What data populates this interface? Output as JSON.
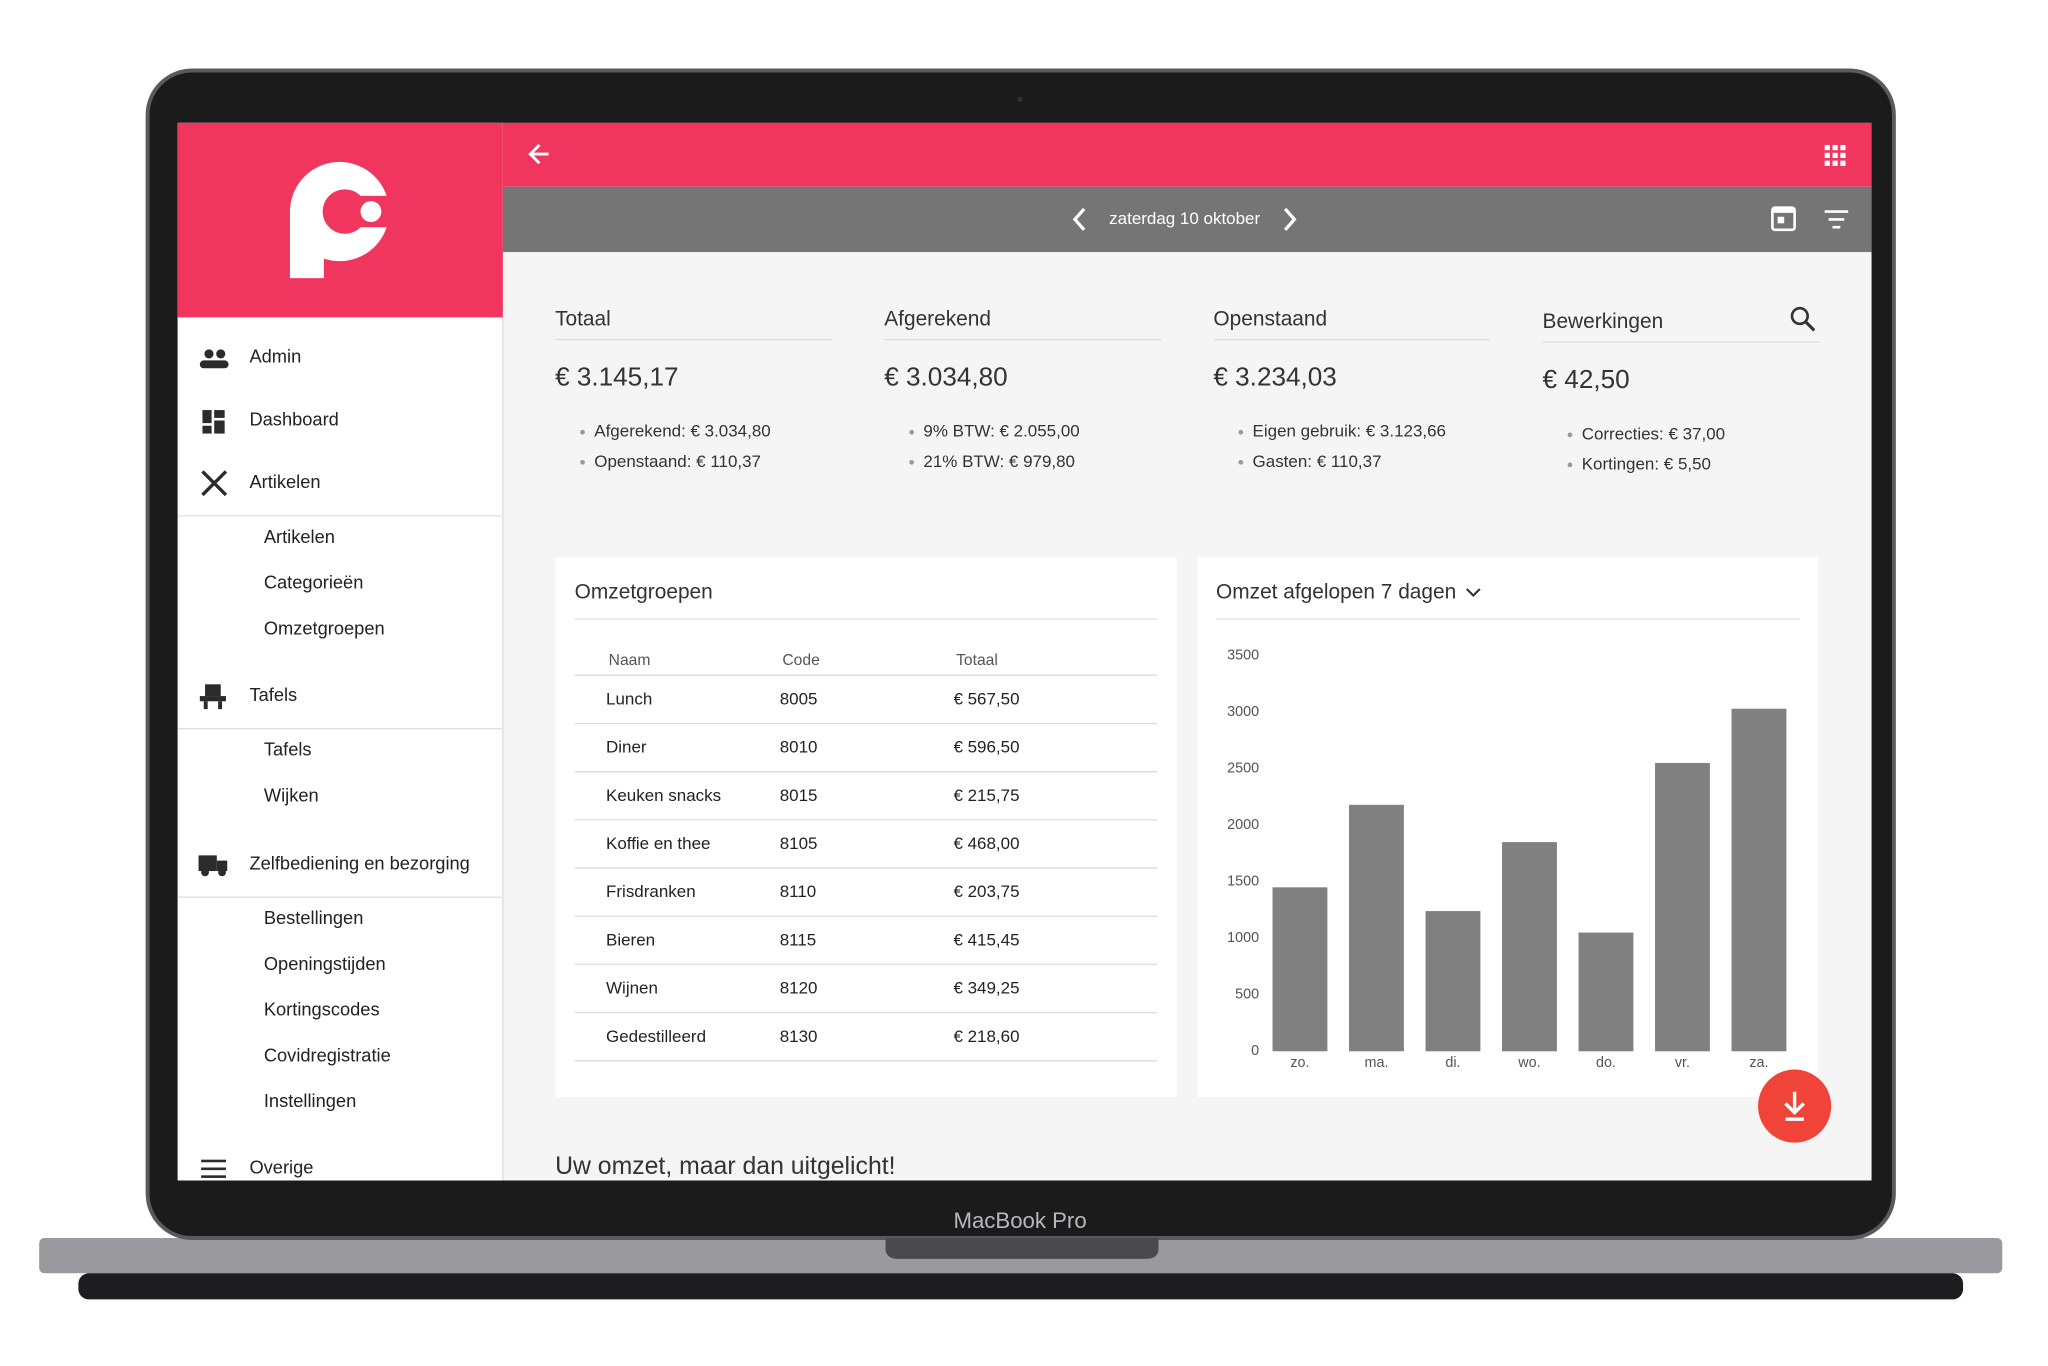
{
  "device_label": "MacBook Pro",
  "header": {
    "date": "zaterdag 10 oktober"
  },
  "sidebar": {
    "menu": [
      {
        "label": "Admin"
      },
      {
        "label": "Dashboard"
      },
      {
        "label": "Artikelen",
        "items": [
          "Artikelen",
          "Categorieën",
          "Omzetgroepen"
        ]
      },
      {
        "label": "Tafels",
        "items": [
          "Tafels",
          "Wijken"
        ]
      },
      {
        "label": "Zelfbediening en bezorging",
        "items": [
          "Bestellingen",
          "Openingstijden",
          "Kortingscodes",
          "Covidregistratie",
          "Instellingen"
        ]
      },
      {
        "label": "Overige"
      }
    ]
  },
  "cards": [
    {
      "title": "Totaal",
      "amount": "€ 3.145,17",
      "details": [
        "Afgerekend: € 3.034,80",
        "Openstaand: € 110,37"
      ]
    },
    {
      "title": "Afgerekend",
      "amount": "€ 3.034,80",
      "details": [
        "9% BTW: € 2.055,00",
        "21% BTW: € 979,80"
      ]
    },
    {
      "title": "Openstaand",
      "amount": "€ 3.234,03",
      "details": [
        "Eigen gebruik: € 3.123,66",
        "Gasten: € 110,37"
      ]
    },
    {
      "title": "Bewerkingen",
      "amount": "€ 42,50",
      "details": [
        "Correcties: € 37,00",
        "Kortingen: € 5,50"
      ]
    }
  ],
  "table": {
    "title": "Omzetgroepen",
    "columns": [
      "Naam",
      "Code",
      "Totaal"
    ],
    "rows": [
      [
        "Lunch",
        "8005",
        "€ 567,50"
      ],
      [
        "Diner",
        "8010",
        "€ 596,50"
      ],
      [
        "Keuken snacks",
        "8015",
        "€ 215,75"
      ],
      [
        "Koffie en thee",
        "8105",
        "€ 468,00"
      ],
      [
        "Frisdranken",
        "8110",
        "€ 203,75"
      ],
      [
        "Bieren",
        "8115",
        "€ 415,45"
      ],
      [
        "Wijnen",
        "8120",
        "€ 349,25"
      ],
      [
        "Gedestilleerd",
        "8130",
        "€ 218,60"
      ]
    ]
  },
  "chart_data": {
    "type": "bar",
    "title": "Omzet afgelopen 7 dagen",
    "categories": [
      "zo.",
      "ma.",
      "di.",
      "wo.",
      "do.",
      "vr.",
      "za."
    ],
    "values": [
      1450,
      2180,
      1240,
      1850,
      1050,
      2550,
      3030
    ],
    "color": "#808080",
    "ylim": [
      0,
      3500
    ],
    "yticks": [
      0,
      500,
      1000,
      1500,
      2000,
      2500,
      3000,
      3500
    ]
  },
  "footer_heading": "Uw omzet, maar dan uitgelicht!"
}
